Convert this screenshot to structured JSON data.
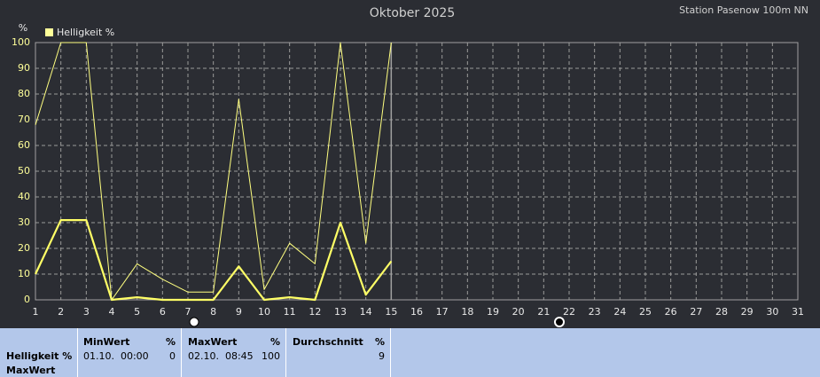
{
  "chart_data": {
    "type": "line",
    "title": "Oktober 2025",
    "subtitle": "Station Pasenow 100m NN",
    "y_label": "%",
    "x": [
      1,
      2,
      3,
      4,
      5,
      6,
      7,
      8,
      9,
      10,
      11,
      12,
      13,
      14,
      15
    ],
    "series": [
      {
        "name": "Helligkeit %",
        "color": "#ffff66",
        "values": [
          10,
          31,
          31,
          0,
          1,
          0,
          0,
          0,
          13,
          0,
          1,
          0,
          30,
          2,
          15
        ]
      },
      {
        "color": "#ffff80",
        "values": [
          68,
          100,
          100,
          0,
          14,
          8,
          3,
          3,
          78,
          4,
          22,
          14,
          100,
          22,
          100
        ]
      }
    ],
    "xlim": [
      1,
      31
    ],
    "xticks": [
      1,
      2,
      3,
      4,
      5,
      6,
      7,
      8,
      9,
      10,
      11,
      12,
      13,
      14,
      15,
      16,
      17,
      18,
      19,
      20,
      21,
      22,
      23,
      24,
      25,
      26,
      27,
      28,
      29,
      30,
      31
    ],
    "ylim": [
      0,
      100
    ],
    "yticks": [
      0,
      10,
      20,
      30,
      40,
      50,
      60,
      70,
      80,
      90,
      100
    ],
    "grid": true,
    "current_x": 15
  },
  "stats": {
    "row_label": [
      "Helligkeit %",
      "MaxWert"
    ],
    "columns": [
      {
        "title": "MinWert",
        "unit": "%",
        "date": "01.10.  00:00",
        "value": 0
      },
      {
        "title": "MaxWert",
        "unit": "%",
        "date": "02.10.  08:45",
        "value": 100
      },
      {
        "title": "Durchschnitt",
        "unit": "%",
        "value": 9
      }
    ]
  }
}
